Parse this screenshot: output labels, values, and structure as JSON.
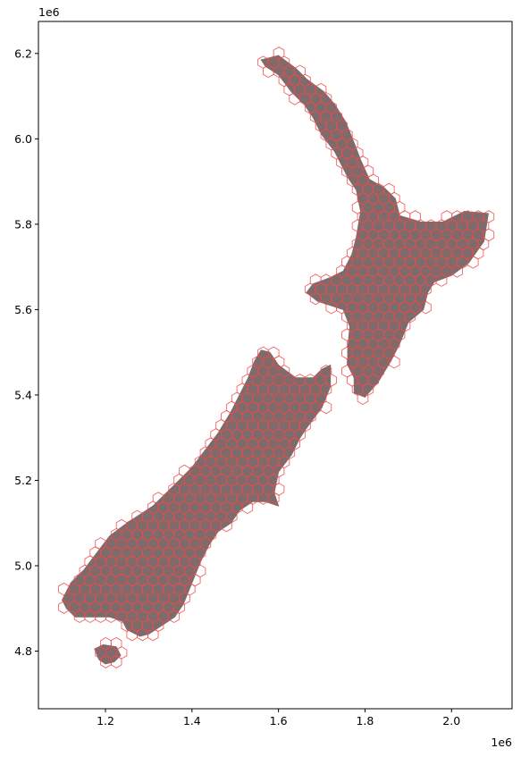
{
  "chart_data": {
    "type": "scatter",
    "title": "",
    "xlabel": "",
    "ylabel": "",
    "x_offset_label": "1e6",
    "y_offset_label": "1e6",
    "xlim": [
      1.045,
      2.14
    ],
    "ylim": [
      4.665,
      6.275
    ],
    "x_ticks": [
      "1.2",
      "1.4",
      "1.6",
      "1.8",
      "2.0"
    ],
    "y_ticks": [
      "4.8",
      "5.0",
      "5.2",
      "5.4",
      "5.6",
      "5.8",
      "6.0",
      "6.2"
    ],
    "grid": false,
    "colors": {
      "land_fill": "#7f6b6b",
      "hex_edge": "#ef4a4a",
      "axes": "#000000"
    },
    "hex_cell_diameter": 0.028,
    "north_island_outline": [
      [
        1.56,
        6.185
      ],
      [
        1.6,
        6.195
      ],
      [
        1.64,
        6.165
      ],
      [
        1.665,
        6.14
      ],
      [
        1.705,
        6.11
      ],
      [
        1.73,
        6.08
      ],
      [
        1.755,
        6.04
      ],
      [
        1.775,
        5.99
      ],
      [
        1.79,
        5.95
      ],
      [
        1.81,
        5.905
      ],
      [
        1.845,
        5.885
      ],
      [
        1.87,
        5.86
      ],
      [
        1.88,
        5.82
      ],
      [
        1.93,
        5.805
      ],
      [
        1.98,
        5.805
      ],
      [
        2.03,
        5.83
      ],
      [
        2.085,
        5.825
      ],
      [
        2.075,
        5.76
      ],
      [
        2.04,
        5.71
      ],
      [
        2.0,
        5.68
      ],
      [
        1.96,
        5.665
      ],
      [
        1.945,
        5.64
      ],
      [
        1.935,
        5.6
      ],
      [
        1.9,
        5.57
      ],
      [
        1.88,
        5.52
      ],
      [
        1.86,
        5.48
      ],
      [
        1.83,
        5.43
      ],
      [
        1.8,
        5.395
      ],
      [
        1.775,
        5.405
      ],
      [
        1.775,
        5.44
      ],
      [
        1.76,
        5.47
      ],
      [
        1.76,
        5.51
      ],
      [
        1.765,
        5.56
      ],
      [
        1.75,
        5.6
      ],
      [
        1.72,
        5.61
      ],
      [
        1.69,
        5.62
      ],
      [
        1.665,
        5.64
      ],
      [
        1.68,
        5.66
      ],
      [
        1.72,
        5.675
      ],
      [
        1.75,
        5.69
      ],
      [
        1.77,
        5.73
      ],
      [
        1.78,
        5.77
      ],
      [
        1.79,
        5.83
      ],
      [
        1.78,
        5.88
      ],
      [
        1.76,
        5.91
      ],
      [
        1.73,
        5.97
      ],
      [
        1.7,
        6.01
      ],
      [
        1.68,
        6.05
      ],
      [
        1.66,
        6.08
      ],
      [
        1.63,
        6.11
      ],
      [
        1.6,
        6.15
      ],
      [
        1.57,
        6.17
      ]
    ],
    "south_island_outline": [
      [
        1.56,
        5.505
      ],
      [
        1.58,
        5.5
      ],
      [
        1.6,
        5.47
      ],
      [
        1.64,
        5.44
      ],
      [
        1.68,
        5.44
      ],
      [
        1.7,
        5.46
      ],
      [
        1.72,
        5.47
      ],
      [
        1.72,
        5.42
      ],
      [
        1.7,
        5.37
      ],
      [
        1.67,
        5.33
      ],
      [
        1.65,
        5.3
      ],
      [
        1.63,
        5.26
      ],
      [
        1.6,
        5.22
      ],
      [
        1.59,
        5.17
      ],
      [
        1.6,
        5.14
      ],
      [
        1.57,
        5.15
      ],
      [
        1.54,
        5.15
      ],
      [
        1.51,
        5.13
      ],
      [
        1.49,
        5.1
      ],
      [
        1.46,
        5.08
      ],
      [
        1.44,
        5.05
      ],
      [
        1.42,
        5.01
      ],
      [
        1.4,
        4.96
      ],
      [
        1.38,
        4.91
      ],
      [
        1.36,
        4.88
      ],
      [
        1.33,
        4.86
      ],
      [
        1.3,
        4.84
      ],
      [
        1.28,
        4.835
      ],
      [
        1.25,
        4.85
      ],
      [
        1.24,
        4.87
      ],
      [
        1.21,
        4.88
      ],
      [
        1.17,
        4.88
      ],
      [
        1.13,
        4.88
      ],
      [
        1.11,
        4.9
      ],
      [
        1.1,
        4.92
      ],
      [
        1.12,
        4.96
      ],
      [
        1.15,
        4.99
      ],
      [
        1.18,
        5.03
      ],
      [
        1.21,
        5.07
      ],
      [
        1.25,
        5.1
      ],
      [
        1.28,
        5.12
      ],
      [
        1.31,
        5.14
      ],
      [
        1.34,
        5.17
      ],
      [
        1.37,
        5.2
      ],
      [
        1.4,
        5.23
      ],
      [
        1.43,
        5.27
      ],
      [
        1.46,
        5.31
      ],
      [
        1.49,
        5.36
      ],
      [
        1.51,
        5.4
      ],
      [
        1.53,
        5.44
      ],
      [
        1.545,
        5.48
      ]
    ],
    "stewart_island_outline": [
      [
        1.175,
        4.805
      ],
      [
        1.195,
        4.815
      ],
      [
        1.225,
        4.81
      ],
      [
        1.235,
        4.79
      ],
      [
        1.22,
        4.775
      ],
      [
        1.2,
        4.77
      ],
      [
        1.185,
        4.78
      ]
    ]
  }
}
